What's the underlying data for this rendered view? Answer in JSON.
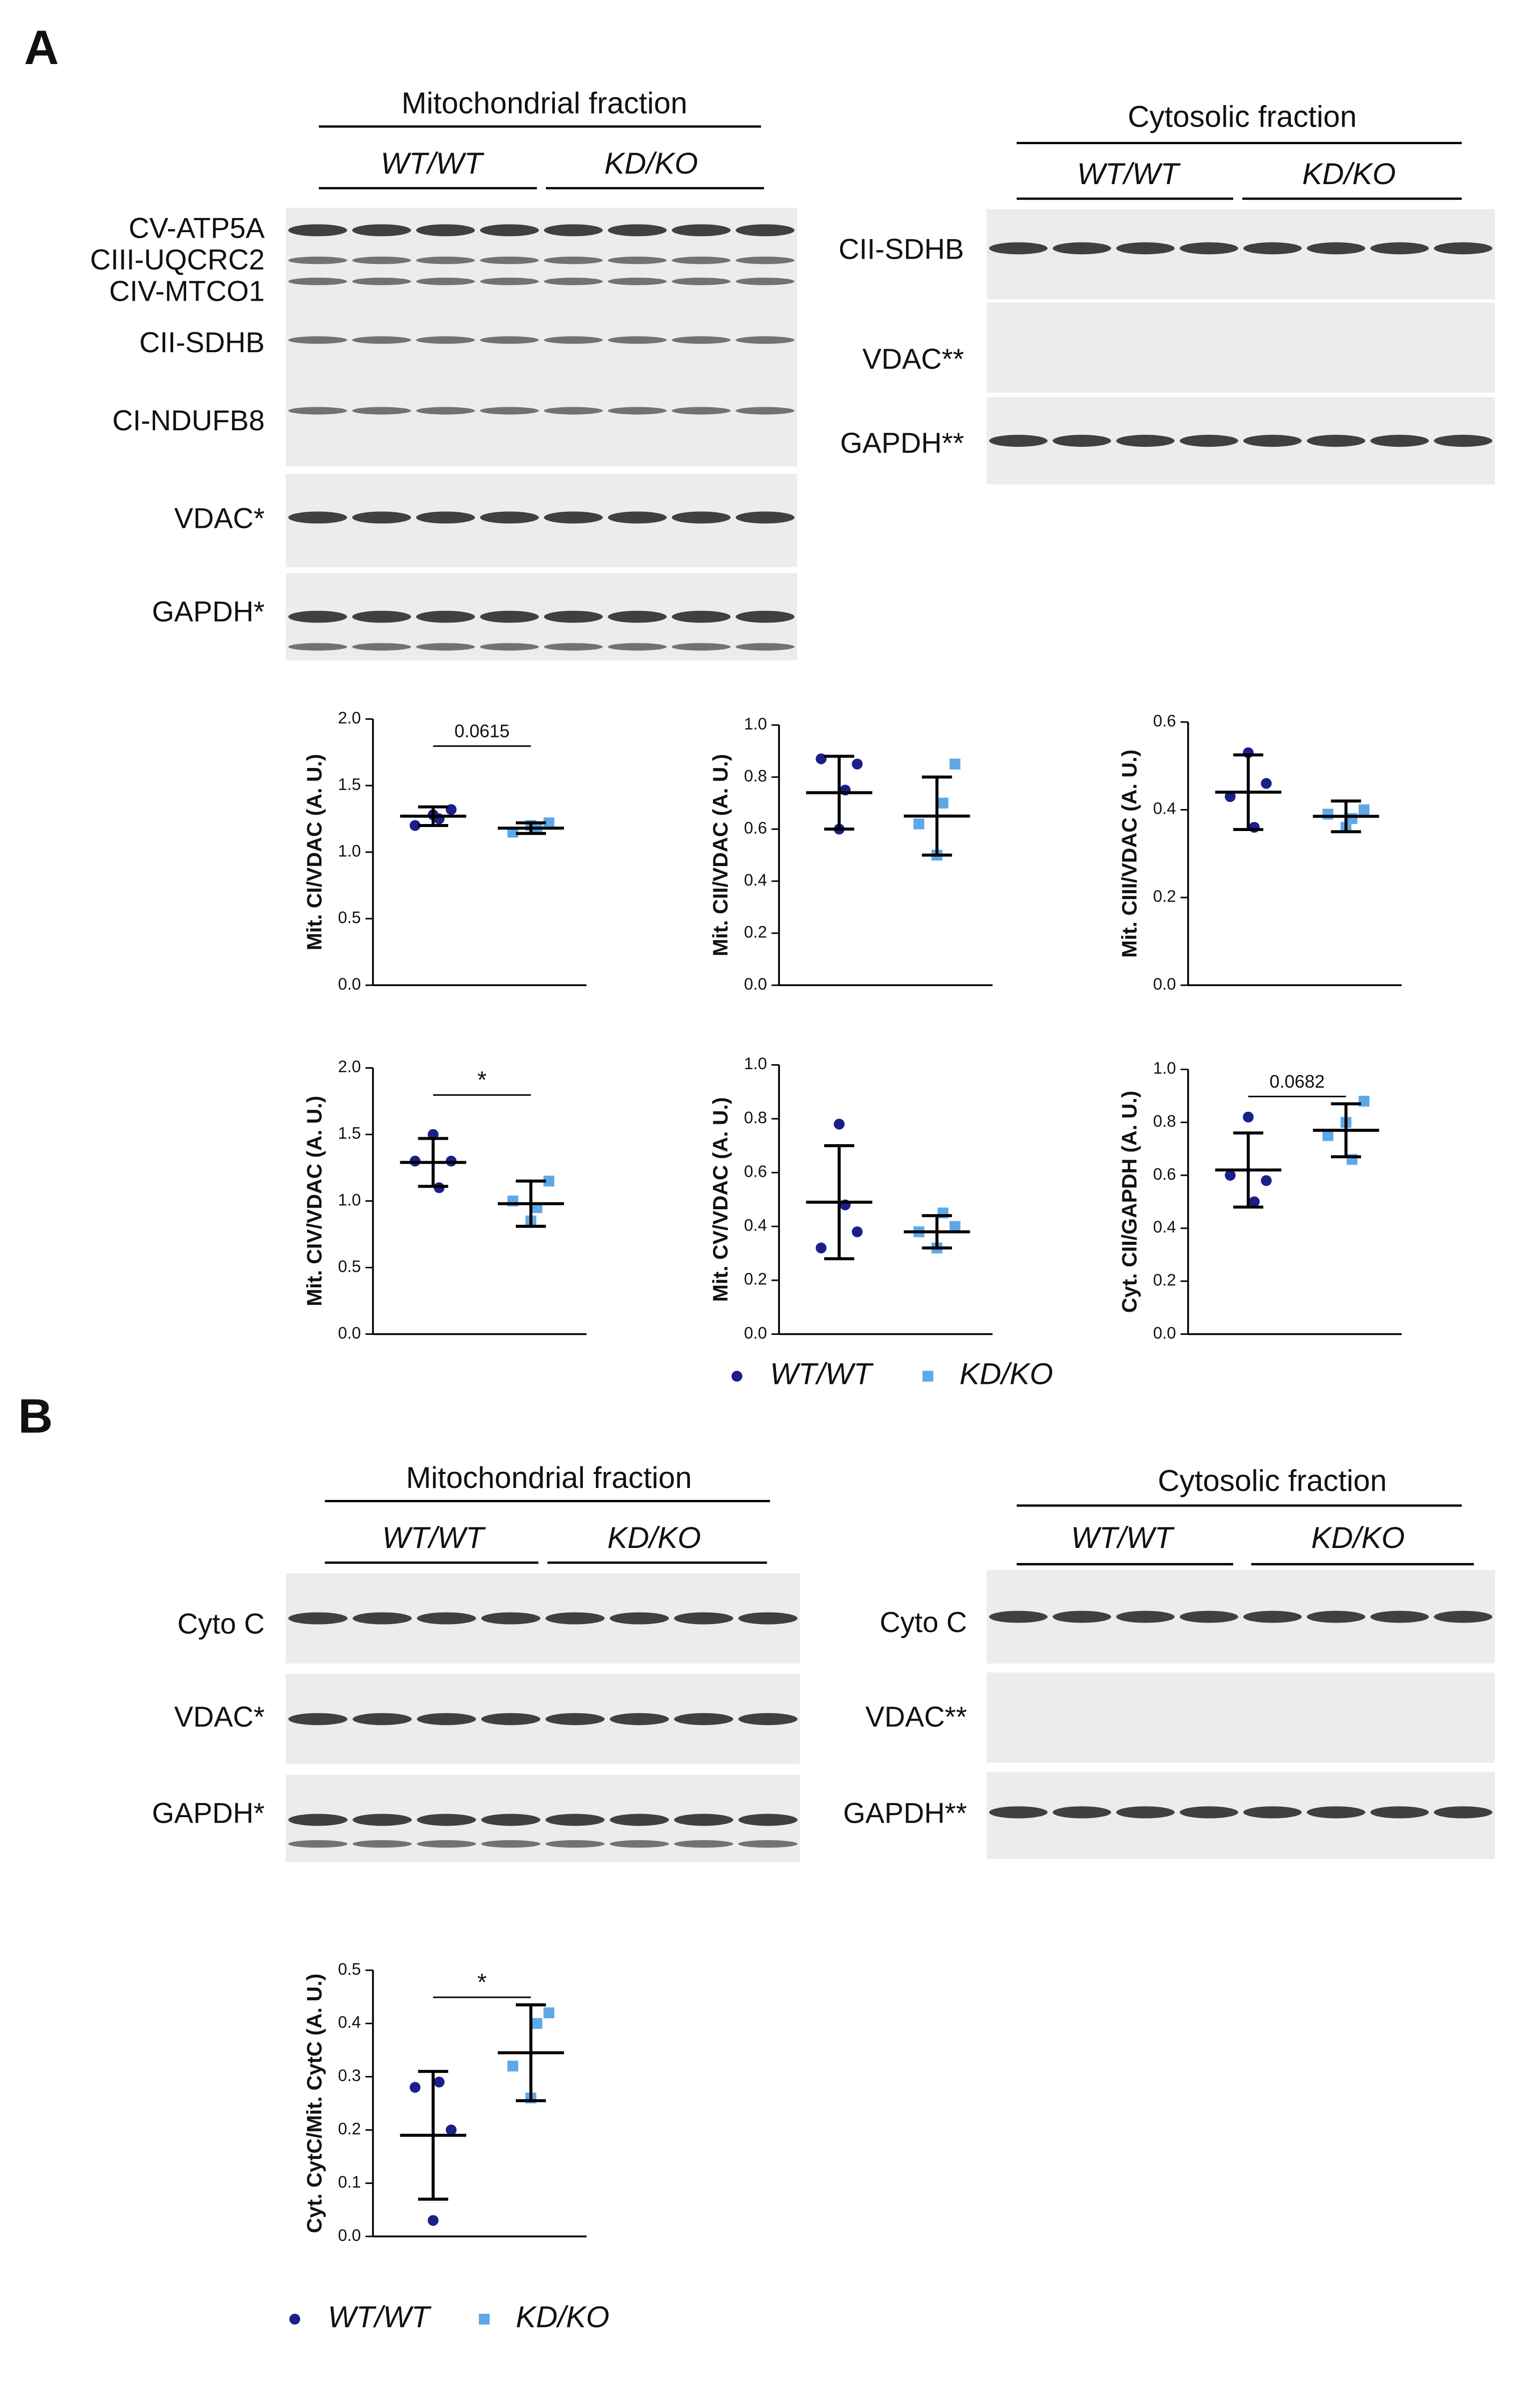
{
  "panel_labels": [
    "A",
    "B"
  ],
  "blots": [
    {
      "title": "Mitochondrial fraction",
      "groups": [
        "WT/WT",
        "KD/KO"
      ],
      "rows": [
        "CV-ATP5A",
        "CIII-UQCRC2",
        "CIV-MTCO1",
        "CII-SDHB",
        "CI-NDUFB8",
        "VDAC*",
        "GAPDH*"
      ]
    },
    {
      "title": "Cytosolic fraction",
      "groups": [
        "WT/WT",
        "KD/KO"
      ],
      "rows": [
        "CII-SDHB",
        "VDAC**",
        "GAPDH**"
      ]
    },
    {
      "title": "Mitochondrial fraction",
      "groups": [
        "WT/WT",
        "KD/KO"
      ],
      "rows": [
        "Cyto C",
        "VDAC*",
        "GAPDH*"
      ]
    },
    {
      "title": "Cytosolic fraction",
      "groups": [
        "WT/WT",
        "KD/KO"
      ],
      "rows": [
        "Cyto C",
        "VDAC**",
        "GAPDH**"
      ]
    }
  ],
  "chart_data": [
    {
      "type": "scatter",
      "ylabel": "Mit. CI/VDAC (A. U.)",
      "annotation": "0.0615",
      "ylim": [
        0,
        2
      ],
      "yticks": [
        {
          "value": 0,
          "label": "0.0"
        },
        0.5,
        {
          "value": 1,
          "label": "1.0"
        },
        1.5,
        {
          "value": 2,
          "label": "2.0"
        }
      ],
      "series": [
        {
          "name": "WT/WT",
          "color": "#1b1f8a",
          "values": [
            1.2,
            1.28,
            1.32,
            1.25
          ],
          "mean": 1.27,
          "sd": 0.07
        },
        {
          "name": "KD/KO",
          "color": "#5fa8e8",
          "values": [
            1.15,
            1.2,
            1.22,
            1.18
          ],
          "mean": 1.18,
          "sd": 0.04
        }
      ]
    },
    {
      "type": "scatter",
      "ylabel": "Mit. CII/VDAC (A. U.)",
      "ylim": [
        0,
        1
      ],
      "yticks": [
        {
          "value": 0,
          "label": "0.0"
        },
        0.2,
        0.4,
        0.6,
        0.8,
        {
          "value": 1,
          "label": "1.0"
        }
      ],
      "series": [
        {
          "name": "WT/WT",
          "color": "#1b1f8a",
          "values": [
            0.87,
            0.6,
            0.85,
            0.75
          ],
          "mean": 0.74,
          "sd": 0.14
        },
        {
          "name": "KD/KO",
          "color": "#5fa8e8",
          "values": [
            0.62,
            0.5,
            0.85,
            0.7
          ],
          "mean": 0.65,
          "sd": 0.15
        }
      ]
    },
    {
      "type": "scatter",
      "ylabel": "Mit. CIII/VDAC (A. U.)",
      "ylim": [
        0,
        0.6
      ],
      "yticks": [
        {
          "value": 0,
          "label": "0.0"
        },
        0.2,
        0.4,
        0.6
      ],
      "series": [
        {
          "name": "WT/WT",
          "color": "#1b1f8a",
          "values": [
            0.43,
            0.53,
            0.46,
            0.36
          ],
          "mean": 0.44,
          "sd": 0.085
        },
        {
          "name": "KD/KO",
          "color": "#5fa8e8",
          "values": [
            0.39,
            0.36,
            0.4,
            0.38
          ],
          "mean": 0.385,
          "sd": 0.035
        }
      ]
    },
    {
      "type": "scatter",
      "ylabel": "Mit. CIV/VDAC (A. U.)",
      "annotation": "*",
      "ylim": [
        0,
        2
      ],
      "yticks": [
        {
          "value": 0,
          "label": "0.0"
        },
        0.5,
        {
          "value": 1,
          "label": "1.0"
        },
        1.5,
        {
          "value": 2,
          "label": "2.0"
        }
      ],
      "series": [
        {
          "name": "WT/WT",
          "color": "#1b1f8a",
          "values": [
            1.3,
            1.5,
            1.3,
            1.1
          ],
          "mean": 1.29,
          "sd": 0.18
        },
        {
          "name": "KD/KO",
          "color": "#5fa8e8",
          "values": [
            1.0,
            0.85,
            1.15,
            0.95
          ],
          "mean": 0.98,
          "sd": 0.17
        }
      ]
    },
    {
      "type": "scatter",
      "ylabel": "Mit. CV/VDAC (A. U.)",
      "ylim": [
        0,
        1
      ],
      "yticks": [
        {
          "value": 0,
          "label": "0.0"
        },
        0.2,
        0.4,
        0.6,
        0.8,
        {
          "value": 1,
          "label": "1.0"
        }
      ],
      "series": [
        {
          "name": "WT/WT",
          "color": "#1b1f8a",
          "values": [
            0.32,
            0.78,
            0.38,
            0.48
          ],
          "mean": 0.49,
          "sd": 0.21
        },
        {
          "name": "KD/KO",
          "color": "#5fa8e8",
          "values": [
            0.38,
            0.32,
            0.4,
            0.45
          ],
          "mean": 0.38,
          "sd": 0.06
        }
      ]
    },
    {
      "type": "scatter",
      "ylabel": "Cyt. CII/GAPDH (A. U.)",
      "annotation": "0.0682",
      "ylim": [
        0,
        1
      ],
      "yticks": [
        {
          "value": 0,
          "label": "0.0"
        },
        0.2,
        0.4,
        0.6,
        0.8,
        {
          "value": 1,
          "label": "1.0"
        }
      ],
      "series": [
        {
          "name": "WT/WT",
          "color": "#1b1f8a",
          "values": [
            0.6,
            0.82,
            0.58,
            0.5
          ],
          "mean": 0.62,
          "sd": 0.14
        },
        {
          "name": "KD/KO",
          "color": "#5fa8e8",
          "values": [
            0.75,
            0.8,
            0.88,
            0.66
          ],
          "mean": 0.77,
          "sd": 0.1
        }
      ]
    },
    {
      "type": "scatter",
      "ylabel": "Cyt. CytC/Mit. CytC (A. U.)",
      "annotation": "*",
      "ylim": [
        0,
        0.5
      ],
      "yticks": [
        {
          "value": 0,
          "label": "0.0"
        },
        0.1,
        0.2,
        0.3,
        0.4,
        0.5
      ],
      "series": [
        {
          "name": "WT/WT",
          "color": "#1b1f8a",
          "values": [
            0.28,
            0.03,
            0.2,
            0.29
          ],
          "mean": 0.19,
          "sd": 0.12
        },
        {
          "name": "KD/KO",
          "color": "#5fa8e8",
          "values": [
            0.32,
            0.26,
            0.42,
            0.4
          ],
          "mean": 0.345,
          "sd": 0.09
        }
      ]
    }
  ]
}
